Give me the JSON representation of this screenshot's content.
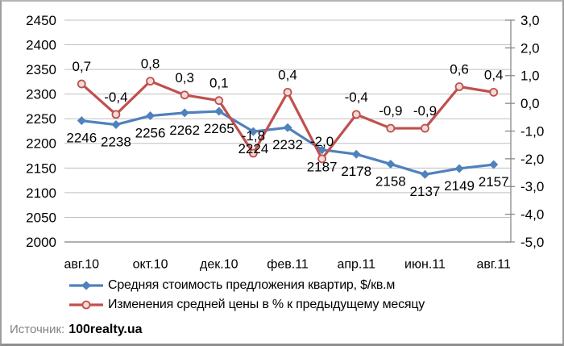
{
  "chart_data": {
    "type": "line",
    "title": "",
    "point_count": 13,
    "x_tick_labels": [
      "авг.10",
      "окт.10",
      "дек.10",
      "фев.11",
      "апр.11",
      "июн.11",
      "авг.11"
    ],
    "x_tick_indices": [
      0,
      2,
      4,
      6,
      8,
      10,
      12
    ],
    "left_axis": {
      "min": 2000,
      "max": 2450,
      "step": 50,
      "ticks": [
        "2450",
        "2400",
        "2350",
        "2300",
        "2250",
        "2200",
        "2150",
        "2100",
        "2050",
        "2000"
      ]
    },
    "right_axis": {
      "min": -5,
      "max": 3,
      "step": 1,
      "ticks": [
        "3,0",
        "2,0",
        "1,0",
        "0,0",
        "-1,0",
        "-2,0",
        "-3,0",
        "-4,0",
        "-5,0"
      ]
    },
    "series": [
      {
        "name": "Средняя стоимость предложения квартир, $/кв.м",
        "axis": "left",
        "color": "#4F81BD",
        "marker": "diamond",
        "marker_fill": "#4F81BD",
        "values": [
          2246,
          2238,
          2256,
          2262,
          2265,
          2224,
          2232,
          2187,
          2178,
          2158,
          2137,
          2149,
          2157
        ],
        "labels": [
          "2246",
          "2238",
          "2256",
          "2262",
          "2265",
          "2224",
          "2232",
          "2187",
          "2178",
          "2158",
          "2137",
          "2149",
          "2157"
        ],
        "label_position": "below"
      },
      {
        "name": "Изменения средней цены в % к предыдущему месяцу",
        "axis": "right",
        "color": "#C0504D",
        "marker": "circle",
        "marker_fill": "#F2DCDB",
        "values": [
          0.7,
          -0.4,
          0.8,
          0.3,
          0.1,
          -1.8,
          0.4,
          -2.0,
          -0.4,
          -0.9,
          -0.9,
          0.6,
          0.4
        ],
        "labels": [
          "0,7",
          "-0,4",
          "0,8",
          "0,3",
          "0,1",
          "-1,8",
          "0,4",
          "-2,0",
          "-0,4",
          "-0,9",
          "-0,9",
          "0,6",
          "0,4"
        ],
        "label_position": "above"
      }
    ],
    "grid": true,
    "legend_position": "bottom-left",
    "style": {
      "grid_color": "#BFBFBF",
      "axis_color": "#808080",
      "text_color": "#000000",
      "background": "#FFFFFF"
    }
  },
  "source": {
    "prefix": "Источник:",
    "name": "100realty.ua"
  }
}
